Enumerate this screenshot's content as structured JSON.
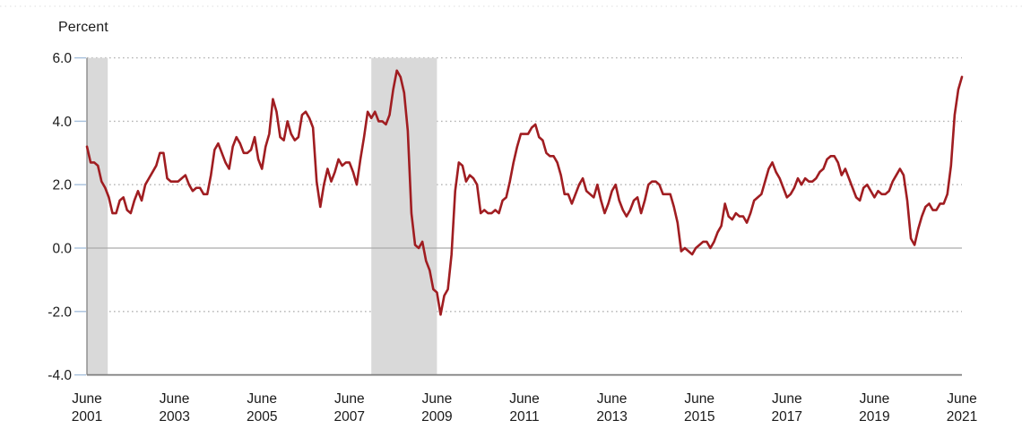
{
  "chart_data": {
    "type": "line",
    "title": "",
    "ylabel": "Percent",
    "xlabel": "",
    "frequency": "monthly",
    "x_range": [
      "June 2001",
      "June 2021"
    ],
    "ylim": [
      -4.0,
      6.0
    ],
    "grid": "dotted horizontal gridlines, solid zero line",
    "legend": "none",
    "y_ticks": [
      {
        "label": "6.0",
        "value": 6.0
      },
      {
        "label": "4.0",
        "value": 4.0
      },
      {
        "label": "2.0",
        "value": 2.0
      },
      {
        "label": "0.0",
        "value": 0.0
      },
      {
        "label": "-2.0",
        "value": -2.0
      },
      {
        "label": "-4.0",
        "value": -4.0
      }
    ],
    "x_ticks": [
      {
        "month": 0,
        "line1": "June",
        "line2": "2001"
      },
      {
        "month": 24,
        "line1": "June",
        "line2": "2003"
      },
      {
        "month": 48,
        "line1": "June",
        "line2": "2005"
      },
      {
        "month": 72,
        "line1": "June",
        "line2": "2007"
      },
      {
        "month": 96,
        "line1": "June",
        "line2": "2009"
      },
      {
        "month": 120,
        "line1": "June",
        "line2": "2011"
      },
      {
        "month": 144,
        "line1": "June",
        "line2": "2013"
      },
      {
        "month": 168,
        "line1": "June",
        "line2": "2015"
      },
      {
        "month": 192,
        "line1": "June",
        "line2": "2017"
      },
      {
        "month": 216,
        "line1": "June",
        "line2": "2019"
      },
      {
        "month": 240,
        "line1": "June",
        "line2": "2021"
      }
    ],
    "shaded_bands": [
      {
        "start_month": 0,
        "end_month": 5.7
      },
      {
        "start_month": 78,
        "end_month": 96
      }
    ],
    "series": [
      {
        "start_label": "June 2001",
        "end_label": "June 2021",
        "values": [
          3.2,
          2.7,
          2.7,
          2.6,
          2.1,
          1.9,
          1.6,
          1.1,
          1.1,
          1.5,
          1.6,
          1.2,
          1.1,
          1.5,
          1.8,
          1.5,
          2.0,
          2.2,
          2.4,
          2.6,
          3.0,
          3.0,
          2.2,
          2.1,
          2.1,
          2.1,
          2.2,
          2.3,
          2.0,
          1.8,
          1.9,
          1.9,
          1.7,
          1.7,
          2.3,
          3.1,
          3.3,
          3.0,
          2.7,
          2.5,
          3.2,
          3.5,
          3.3,
          3.0,
          3.0,
          3.1,
          3.5,
          2.8,
          2.5,
          3.2,
          3.6,
          4.7,
          4.3,
          3.5,
          3.4,
          4.0,
          3.6,
          3.4,
          3.5,
          4.2,
          4.3,
          4.1,
          3.8,
          2.1,
          1.3,
          2.0,
          2.5,
          2.1,
          2.4,
          2.8,
          2.6,
          2.7,
          2.7,
          2.4,
          2.0,
          2.8,
          3.5,
          4.3,
          4.1,
          4.3,
          4.0,
          4.0,
          3.9,
          4.2,
          5.0,
          5.6,
          5.4,
          4.9,
          3.7,
          1.1,
          0.1,
          0.0,
          0.2,
          -0.4,
          -0.7,
          -1.3,
          -1.4,
          -2.1,
          -1.5,
          -1.3,
          -0.2,
          1.8,
          2.7,
          2.6,
          2.1,
          2.3,
          2.2,
          2.0,
          1.1,
          1.2,
          1.1,
          1.1,
          1.2,
          1.1,
          1.5,
          1.6,
          2.1,
          2.7,
          3.2,
          3.6,
          3.6,
          3.6,
          3.8,
          3.9,
          3.5,
          3.4,
          3.0,
          2.9,
          2.9,
          2.7,
          2.3,
          1.7,
          1.7,
          1.4,
          1.7,
          2.0,
          2.2,
          1.8,
          1.7,
          1.6,
          2.0,
          1.5,
          1.1,
          1.4,
          1.8,
          2.0,
          1.5,
          1.2,
          1.0,
          1.2,
          1.5,
          1.6,
          1.1,
          1.5,
          2.0,
          2.1,
          2.1,
          2.0,
          1.7,
          1.7,
          1.7,
          1.3,
          0.8,
          -0.1,
          0.0,
          -0.1,
          -0.2,
          0.0,
          0.1,
          0.2,
          0.2,
          0.0,
          0.2,
          0.5,
          0.7,
          1.4,
          1.0,
          0.9,
          1.1,
          1.0,
          1.0,
          0.8,
          1.1,
          1.5,
          1.6,
          1.7,
          2.1,
          2.5,
          2.7,
          2.4,
          2.2,
          1.9,
          1.6,
          1.7,
          1.9,
          2.2,
          2.0,
          2.2,
          2.1,
          2.1,
          2.2,
          2.4,
          2.5,
          2.8,
          2.9,
          2.9,
          2.7,
          2.3,
          2.5,
          2.2,
          1.9,
          1.6,
          1.5,
          1.9,
          2.0,
          1.8,
          1.6,
          1.8,
          1.7,
          1.7,
          1.8,
          2.1,
          2.3,
          2.5,
          2.3,
          1.5,
          0.3,
          0.1,
          0.6,
          1.0,
          1.3,
          1.4,
          1.2,
          1.2,
          1.4,
          1.4,
          1.7,
          2.6,
          4.2,
          5.0,
          5.4
        ]
      }
    ],
    "colors": {
      "line": "#a01d21",
      "band": "#d9d9d9",
      "grid_dots": "#b3b3b3",
      "zero_line": "#ababab",
      "bottom_axis": "#7d7d7d",
      "left_axis": "#8a8a8a",
      "tick_dash": "#a7c0dc",
      "text": "#1a1a1a",
      "top_rule": "#dedede"
    }
  }
}
